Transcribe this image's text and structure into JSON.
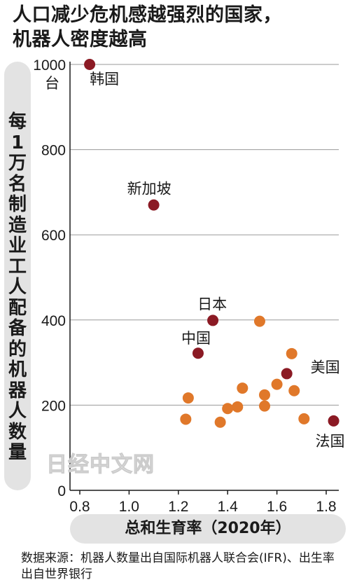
{
  "title_lines": [
    "人口减少危机感越强烈的国家，",
    "机器人密度越高"
  ],
  "watermark": "日经中文网",
  "source": "数据来源：机器人数量出自国际机器人联合会(IFR)、出生率出自世界银行",
  "chart_data": {
    "type": "scatter",
    "xlabel": "总和生育率（2020年）",
    "ylabel": "每1万名制造业工人配备的机器人数量",
    "yunit": "台",
    "xlim": [
      0.8,
      1.8
    ],
    "ylim": [
      0,
      1000
    ],
    "xticks": [
      "0.8",
      "1.0",
      "1.2",
      "1.4",
      "1.6",
      "1.8"
    ],
    "yticks": [
      "0",
      "200",
      "400",
      "600",
      "800",
      "1000"
    ],
    "grid": "horizontal",
    "colors": {
      "highlight": "#8b1a24",
      "other": "#e0782a"
    },
    "series": [
      {
        "group": "highlight",
        "points": [
          {
            "label": "韩国",
            "x": 0.84,
            "y": 1000
          },
          {
            "label": "新加坡",
            "x": 1.1,
            "y": 670
          },
          {
            "label": "日本",
            "x": 1.34,
            "y": 399
          },
          {
            "label": "中国",
            "x": 1.28,
            "y": 322
          },
          {
            "label": "美国",
            "x": 1.64,
            "y": 274
          },
          {
            "label": "法国",
            "x": 1.83,
            "y": 163
          }
        ]
      },
      {
        "group": "other",
        "points": [
          {
            "x": 1.53,
            "y": 397
          },
          {
            "x": 1.66,
            "y": 321
          },
          {
            "x": 1.46,
            "y": 240
          },
          {
            "x": 1.6,
            "y": 249
          },
          {
            "x": 1.55,
            "y": 224
          },
          {
            "x": 1.67,
            "y": 234
          },
          {
            "x": 1.24,
            "y": 217
          },
          {
            "x": 1.55,
            "y": 198
          },
          {
            "x": 1.44,
            "y": 196
          },
          {
            "x": 1.4,
            "y": 192
          },
          {
            "x": 1.23,
            "y": 167
          },
          {
            "x": 1.37,
            "y": 160
          },
          {
            "x": 1.71,
            "y": 168
          }
        ]
      }
    ]
  }
}
